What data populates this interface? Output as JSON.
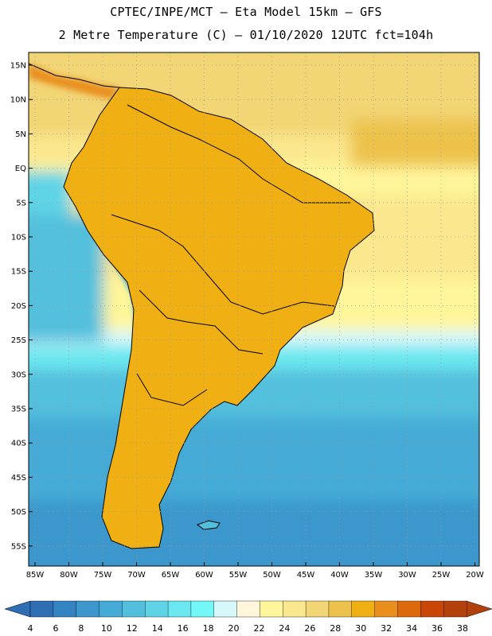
{
  "title": {
    "line1": "CPTEC/INPE/MCT –  Eta Model 15km – GFS",
    "line2": "2 Metre Temperature (C) – 01/10/2020 12UTC fct=104h"
  },
  "map": {
    "region": "South America",
    "variable": "2 Metre Temperature",
    "units": "C",
    "lat_labels": [
      "15N",
      "10N",
      "5N",
      "EQ",
      "5S",
      "10S",
      "15S",
      "20S",
      "25S",
      "30S",
      "35S",
      "40S",
      "45S",
      "50S",
      "55S"
    ],
    "lon_labels": [
      "85W",
      "80W",
      "75W",
      "70W",
      "65W",
      "60W",
      "55W",
      "50W",
      "45W",
      "40W",
      "35W",
      "30W",
      "25W",
      "20W"
    ]
  },
  "colorbar": {
    "ticks": [
      "4",
      "6",
      "8",
      "10",
      "12",
      "14",
      "16",
      "18",
      "20",
      "22",
      "24",
      "26",
      "28",
      "30",
      "32",
      "34",
      "36",
      "38"
    ],
    "colors": [
      "#2f6eb3",
      "#3483c2",
      "#3b97cc",
      "#45abd6",
      "#52c0dd",
      "#5fd4e6",
      "#6ae7ef",
      "#73f7f7",
      "#d7f8fb",
      "#fff6dc",
      "#fff59a",
      "#fbe78e",
      "#f2d574",
      "#ecc24c",
      "#f0b013",
      "#e98e1d",
      "#dc6a0d",
      "#c94608",
      "#b3410c"
    ]
  }
}
